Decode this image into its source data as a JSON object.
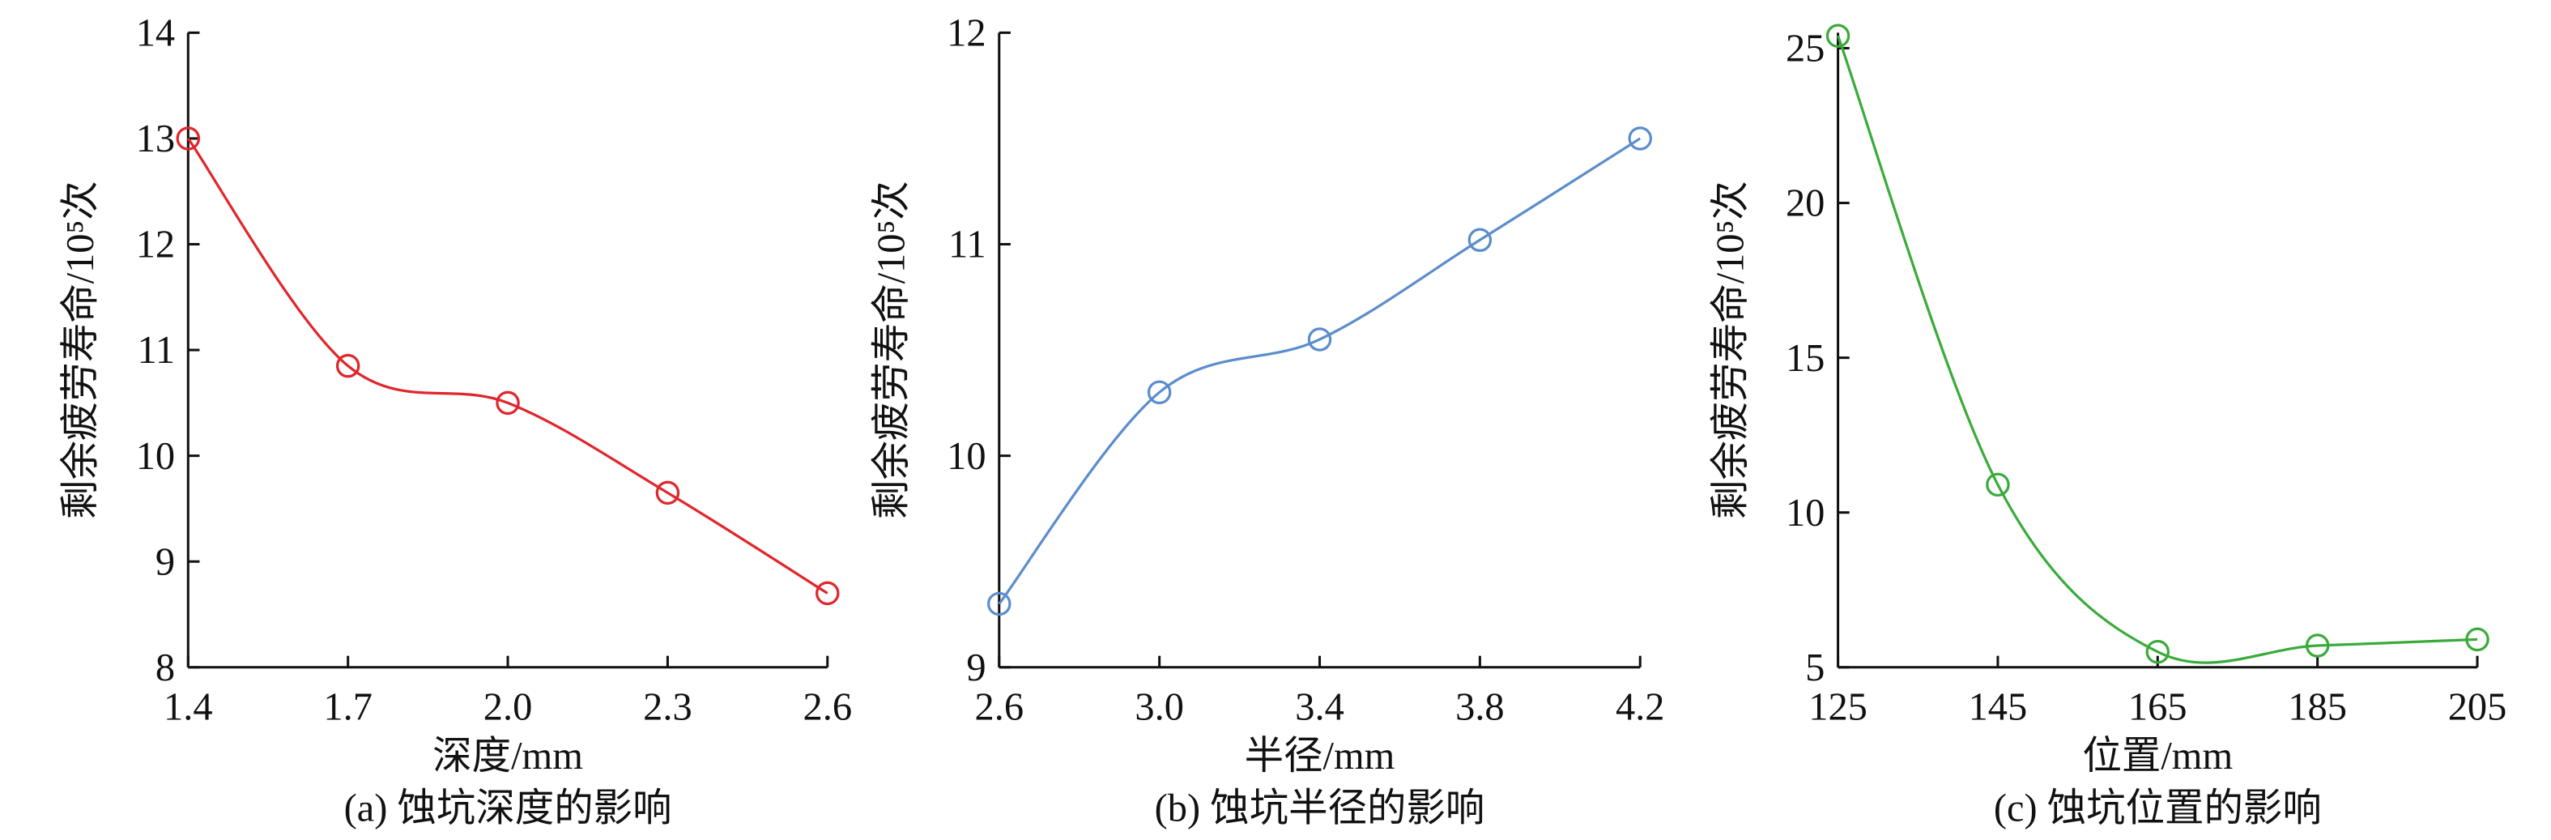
{
  "chart_data": [
    {
      "type": "line",
      "title": "(a) 蚀坑深度的影响",
      "x_label": "深度/mm",
      "y_label": "剩余疲劳寿命/10⁵次",
      "x": [
        1.4,
        1.7,
        2.0,
        2.3,
        2.6
      ],
      "values": [
        13.0,
        10.85,
        10.5,
        9.65,
        8.7
      ],
      "color": "#e0262b",
      "xlim": [
        1.4,
        2.6
      ],
      "xticks": [
        1.4,
        1.7,
        {
          "value": 2.0,
          "label": "2.0"
        },
        2.3,
        2.6
      ],
      "ylim": [
        8,
        14
      ],
      "yticks": [
        8,
        9,
        10,
        11,
        12,
        13,
        14
      ]
    },
    {
      "type": "line",
      "title": "(b) 蚀坑半径的影响",
      "x_label": "半径/mm",
      "y_label": "剩余疲劳寿命/10⁵次",
      "x": [
        2.6,
        3.0,
        3.4,
        3.8,
        4.2
      ],
      "values": [
        9.3,
        10.3,
        10.55,
        11.02,
        11.5
      ],
      "color": "#5b8dcc",
      "xlim": [
        2.6,
        4.2
      ],
      "xticks": [
        2.6,
        {
          "value": 3.0,
          "label": "3.0"
        },
        3.4,
        3.8,
        4.2
      ],
      "ylim": [
        9,
        12
      ],
      "yticks": [
        9,
        10,
        11,
        12
      ]
    },
    {
      "type": "line",
      "title": "(c) 蚀坑位置的影响",
      "x_label": "位置/mm",
      "y_label": "剩余疲劳寿命/10⁵次",
      "x": [
        125,
        145,
        165,
        185,
        205
      ],
      "values": [
        25.4,
        10.9,
        5.5,
        5.7,
        5.9
      ],
      "color": "#3aab3a",
      "xlim": [
        125,
        205
      ],
      "xticks": [
        125,
        145,
        165,
        185,
        205
      ],
      "ylim": [
        5,
        25.5
      ],
      "yticks": [
        5,
        10,
        15,
        20,
        25
      ]
    }
  ]
}
